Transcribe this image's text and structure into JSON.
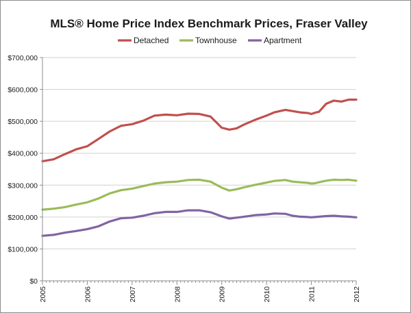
{
  "chart_data": {
    "type": "line",
    "title": "MLS® Home Price Index Benchmark Prices, Fraser Valley",
    "xlabel": "",
    "ylabel": "",
    "ylim": [
      0,
      700000
    ],
    "y_ticks": [
      "$0",
      "$100,000",
      "$200,000",
      "$300,000",
      "$400,000",
      "$500,000",
      "$600,000",
      "$700,000"
    ],
    "x_ticks": [
      "2005",
      "2006",
      "2007",
      "2008",
      "2009",
      "2010",
      "2011",
      "2012"
    ],
    "xlim": [
      2005,
      2012
    ],
    "grid": "horizontal",
    "legend_position": "top",
    "series": [
      {
        "name": "Detached",
        "color": "#c0504d",
        "x": [
          2005.0,
          2005.25,
          2005.5,
          2005.75,
          2006.0,
          2006.25,
          2006.5,
          2006.75,
          2007.0,
          2007.25,
          2007.5,
          2007.75,
          2008.0,
          2008.25,
          2008.5,
          2008.75,
          2009.0,
          2009.17,
          2009.33,
          2009.5,
          2009.75,
          2010.0,
          2010.17,
          2010.42,
          2010.58,
          2010.75,
          2010.92,
          2011.0,
          2011.08,
          2011.17,
          2011.33,
          2011.5,
          2011.67,
          2011.83,
          2012.0
        ],
        "values": [
          375000,
          381000,
          397000,
          412000,
          422000,
          445000,
          468000,
          486000,
          491000,
          502000,
          518000,
          521000,
          519000,
          524000,
          523000,
          515000,
          480000,
          474000,
          478000,
          490000,
          505000,
          518000,
          528000,
          536000,
          532000,
          528000,
          526000,
          523000,
          527000,
          530000,
          555000,
          565000,
          562000,
          568000,
          568000
        ]
      },
      {
        "name": "Townhouse",
        "color": "#9bbb59",
        "x": [
          2005.0,
          2005.25,
          2005.5,
          2005.75,
          2006.0,
          2006.25,
          2006.5,
          2006.75,
          2007.0,
          2007.25,
          2007.5,
          2007.75,
          2008.0,
          2008.25,
          2008.5,
          2008.75,
          2009.0,
          2009.17,
          2009.33,
          2009.5,
          2009.75,
          2010.0,
          2010.17,
          2010.42,
          2010.58,
          2010.75,
          2010.92,
          2011.0,
          2011.08,
          2011.17,
          2011.33,
          2011.5,
          2011.67,
          2011.83,
          2012.0
        ],
        "values": [
          223000,
          226000,
          231000,
          239000,
          246000,
          258000,
          274000,
          284000,
          289000,
          297000,
          305000,
          309000,
          311000,
          316000,
          317000,
          311000,
          292000,
          283000,
          287000,
          293000,
          301000,
          308000,
          313000,
          316000,
          311000,
          309000,
          307000,
          305000,
          306000,
          309000,
          314000,
          317000,
          316000,
          317000,
          314000
        ]
      },
      {
        "name": "Apartment",
        "color": "#8064a2",
        "x": [
          2005.0,
          2005.25,
          2005.5,
          2005.75,
          2006.0,
          2006.25,
          2006.5,
          2006.75,
          2007.0,
          2007.25,
          2007.5,
          2007.75,
          2008.0,
          2008.25,
          2008.5,
          2008.75,
          2009.0,
          2009.17,
          2009.33,
          2009.5,
          2009.75,
          2010.0,
          2010.17,
          2010.42,
          2010.58,
          2010.75,
          2010.92,
          2011.0,
          2011.08,
          2011.17,
          2011.33,
          2011.5,
          2011.67,
          2011.83,
          2012.0
        ],
        "values": [
          141000,
          144000,
          151000,
          156000,
          162000,
          171000,
          186000,
          196000,
          198000,
          204000,
          212000,
          216000,
          216000,
          221000,
          221000,
          215000,
          202000,
          195000,
          198000,
          201000,
          206000,
          208000,
          211000,
          210000,
          204000,
          201000,
          200000,
          199000,
          200000,
          201000,
          203000,
          204000,
          202000,
          201000,
          199000
        ]
      }
    ]
  }
}
